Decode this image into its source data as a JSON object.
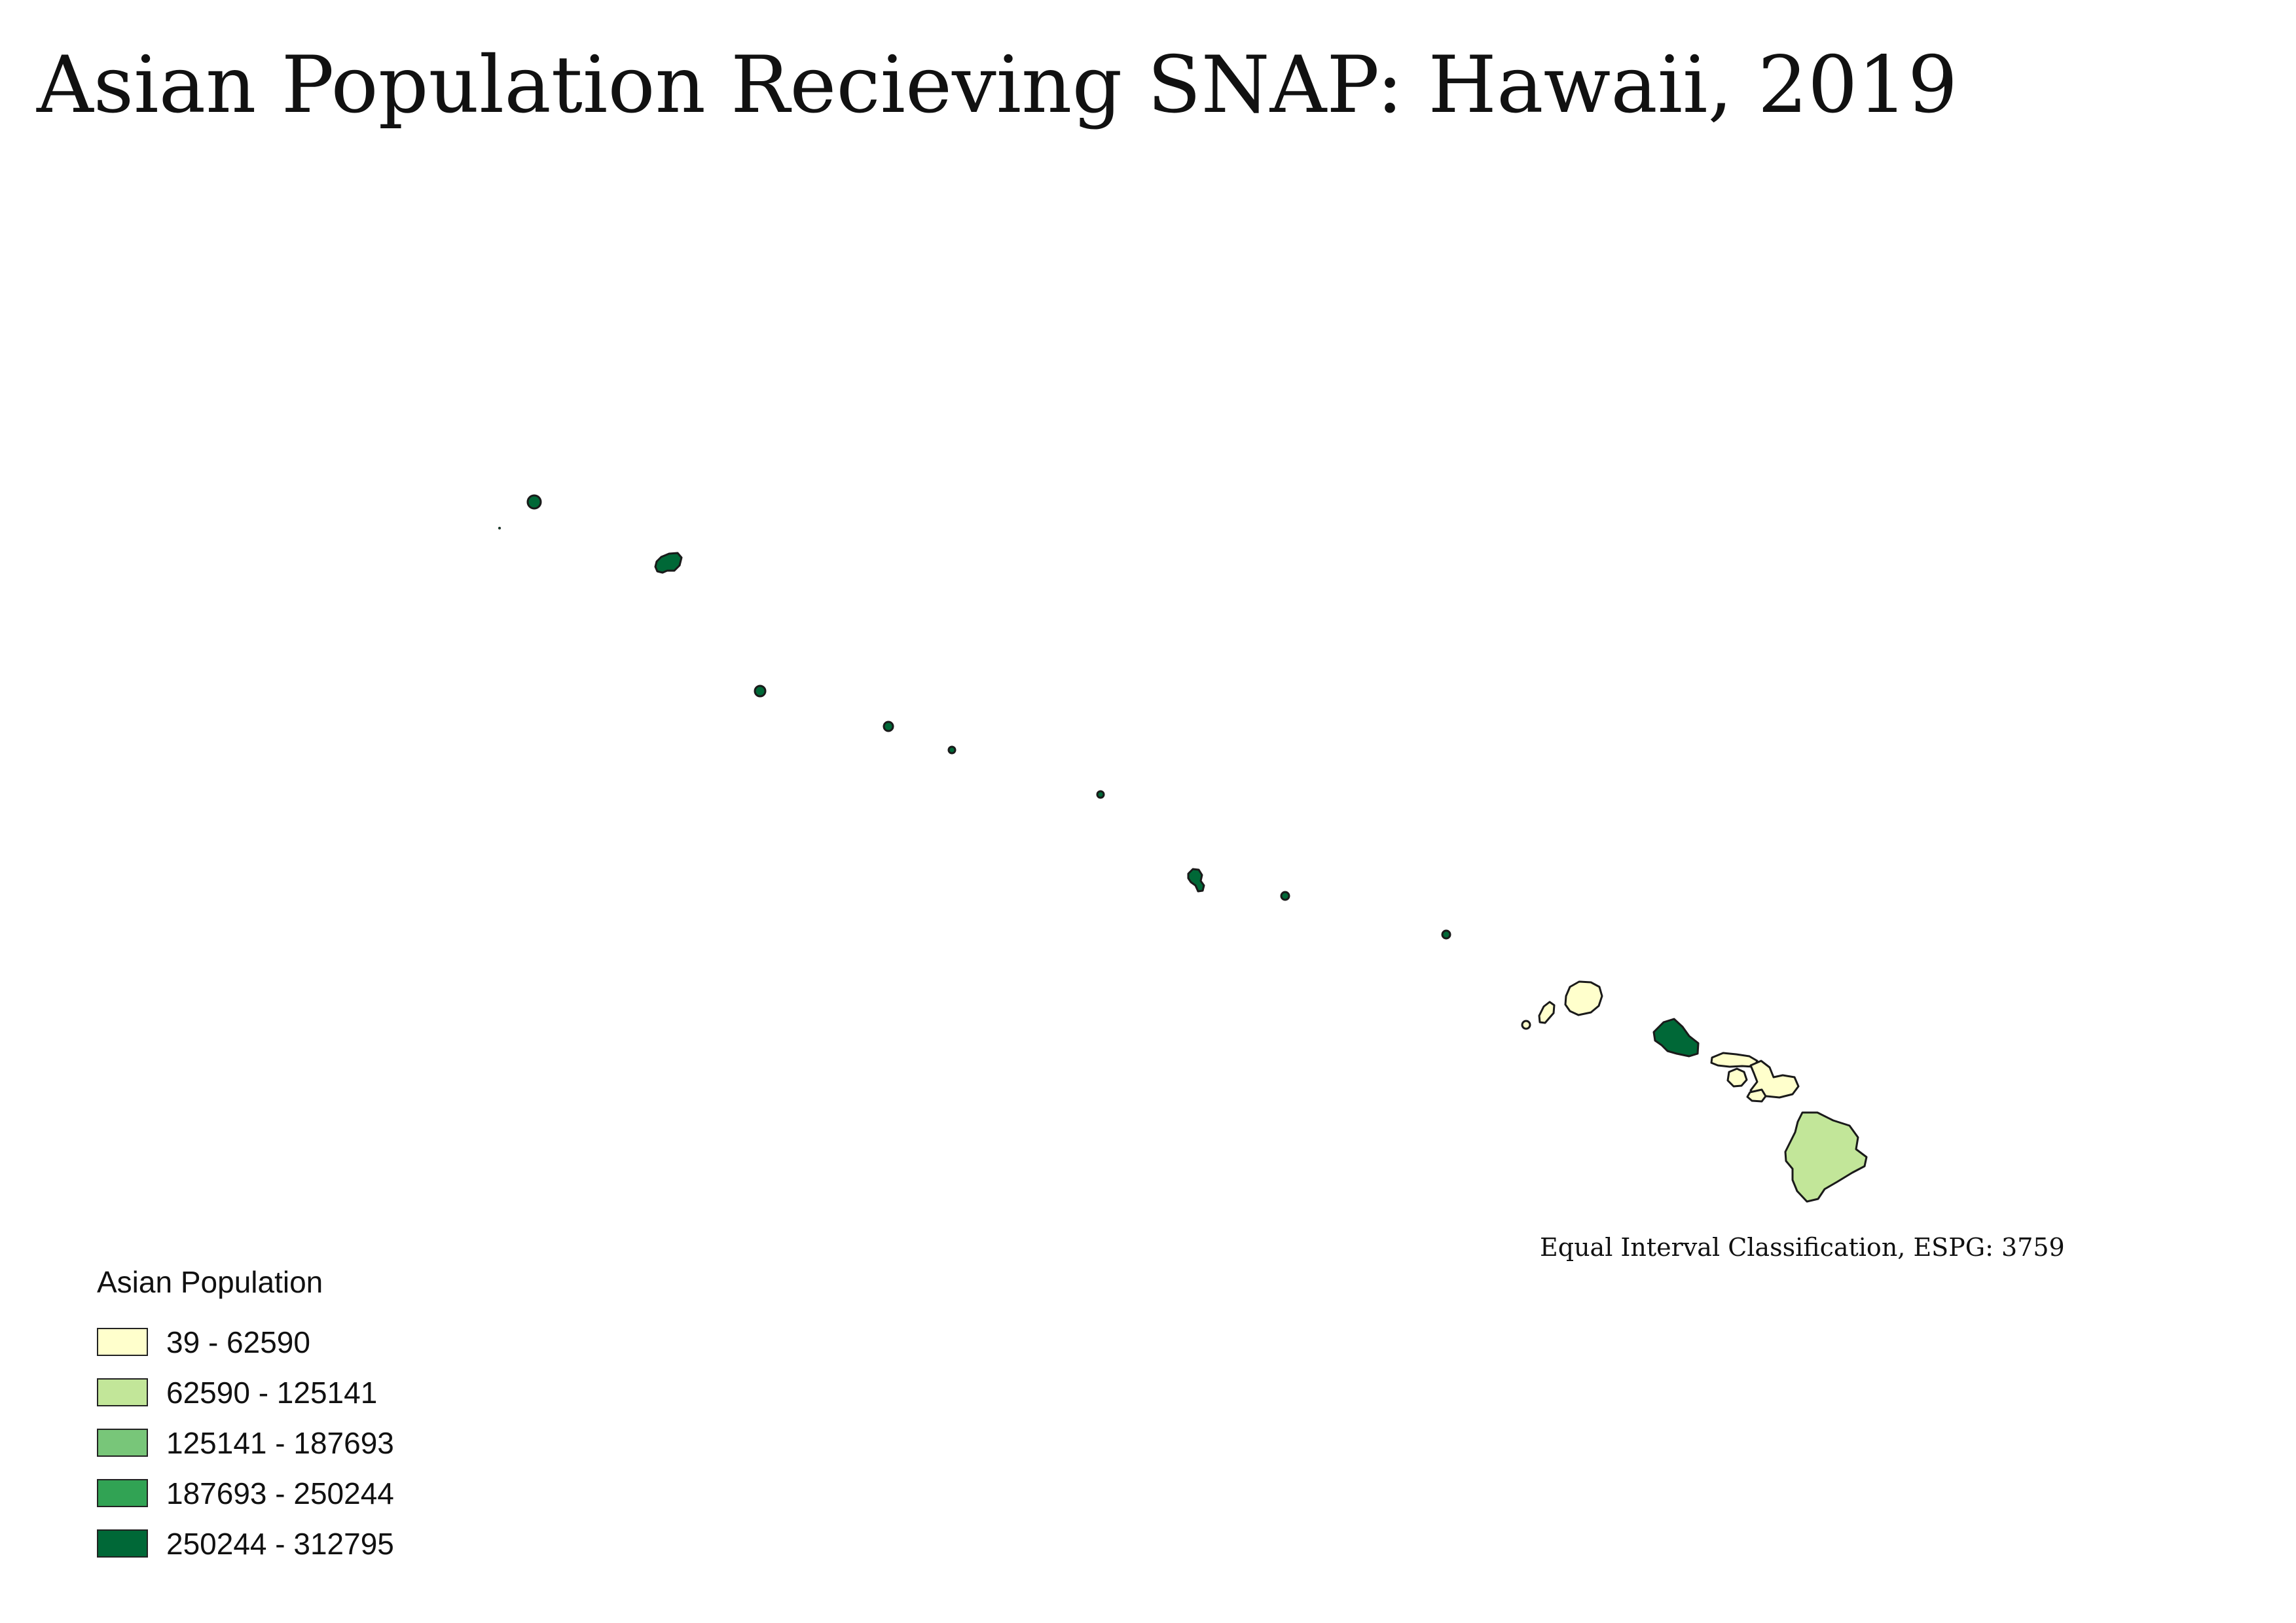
{
  "title": "Asian Population Recieving SNAP: Hawaii, 2019",
  "classification_note": "Equal Interval Classification,  ESPG: 3759",
  "legend": {
    "title": "Asian Population",
    "items": [
      {
        "label": "39 - 62590",
        "color": "#ffffcc"
      },
      {
        "label": "62590 - 125141",
        "color": "#c2e699"
      },
      {
        "label": "125141 - 187693",
        "color": "#78c679"
      },
      {
        "label": "187693 - 250244",
        "color": "#31a354"
      },
      {
        "label": "250244 - 312795",
        "color": "#006837"
      }
    ]
  },
  "map": {
    "regions": [
      {
        "name": "northwestern-islands",
        "class_index": 4
      },
      {
        "name": "kauai",
        "class_index": 0
      },
      {
        "name": "niihau",
        "class_index": 0
      },
      {
        "name": "kaula",
        "class_index": 0
      },
      {
        "name": "oahu",
        "class_index": 4
      },
      {
        "name": "maui-county",
        "class_index": 0
      },
      {
        "name": "hawaii-island",
        "class_index": 1
      }
    ]
  }
}
